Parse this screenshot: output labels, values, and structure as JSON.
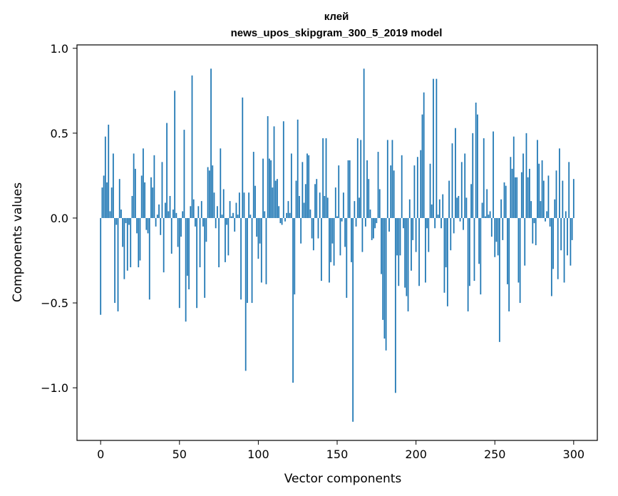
{
  "chart_data": {
    "type": "bar",
    "title": "клей",
    "subtitle": "news_upos_skipgram_300_5_2019 model",
    "xlabel": "Vector components",
    "ylabel": "Components values",
    "xlim": [
      -15,
      315
    ],
    "ylim": [
      -1.31,
      1.02
    ],
    "x_ticks": [
      0,
      50,
      100,
      150,
      200,
      250,
      300
    ],
    "x_tick_labels": [
      "0",
      "50",
      "100",
      "150",
      "200",
      "250",
      "300"
    ],
    "y_ticks": [
      1.0,
      0.5,
      0.0,
      -0.5,
      -1.0
    ],
    "y_tick_labels": [
      "1.0",
      "0.5",
      "0.0",
      "−0.5",
      "−1.0"
    ],
    "grid": false,
    "bar_color": "#1f77b4",
    "values": [
      -0.57,
      0.18,
      0.25,
      0.48,
      0.21,
      0.55,
      0.04,
      0.18,
      0.38,
      -0.5,
      -0.04,
      -0.55,
      0.23,
      0.05,
      -0.17,
      -0.36,
      -0.03,
      -0.31,
      -0.04,
      -0.29,
      0.13,
      0.38,
      0.29,
      -0.09,
      -0.29,
      -0.25,
      0.25,
      0.41,
      0.21,
      -0.07,
      -0.09,
      -0.48,
      0.24,
      0.18,
      0.37,
      -0.05,
      0.02,
      0.08,
      -0.1,
      0.33,
      -0.32,
      0.09,
      0.56,
      0.04,
      0.13,
      -0.21,
      0.05,
      0.75,
      0.03,
      -0.17,
      -0.53,
      -0.11,
      0.04,
      0.52,
      -0.61,
      -0.34,
      -0.42,
      0.07,
      0.84,
      0.11,
      -0.05,
      -0.53,
      0.07,
      -0.29,
      0.1,
      -0.05,
      -0.47,
      -0.14,
      0.3,
      0.28,
      0.88,
      0.31,
      0.15,
      -0.06,
      0.07,
      -0.29,
      0.41,
      0.02,
      0.17,
      -0.26,
      -0.04,
      -0.22,
      0.1,
      0.01,
      0.03,
      -0.08,
      0.09,
      0.02,
      0.15,
      -0.48,
      0.71,
      0.15,
      -0.9,
      -0.5,
      0.15,
      0.02,
      -0.5,
      0.39,
      0.19,
      -0.11,
      -0.24,
      -0.15,
      -0.38,
      0.35,
      0.04,
      -0.39,
      0.6,
      0.35,
      0.34,
      0.18,
      0.54,
      0.22,
      0.23,
      0.07,
      -0.03,
      -0.04,
      0.57,
      -0.02,
      0.03,
      0.1,
      0.03,
      0.38,
      -0.97,
      -0.45,
      0.22,
      0.58,
      0.13,
      -0.15,
      0.33,
      0.09,
      0.2,
      0.38,
      0.37,
      0.05,
      -0.12,
      -0.19,
      0.2,
      0.23,
      -0.12,
      0.15,
      -0.37,
      0.47,
      0.13,
      0.47,
      0.12,
      -0.38,
      -0.26,
      -0.15,
      -0.28,
      0.18,
      0.01,
      0.31,
      -0.22,
      -0.02,
      0.15,
      -0.17,
      -0.47,
      0.34,
      0.34,
      -0.26,
      -1.2,
      0.1,
      -0.05,
      0.47,
      0.12,
      0.46,
      -0.2,
      0.88,
      -0.05,
      0.34,
      0.23,
      0.05,
      -0.13,
      -0.12,
      -0.06,
      -0.03,
      0.39,
      0.17,
      -0.33,
      -0.6,
      -0.71,
      -0.78,
      0.46,
      -0.08,
      0.31,
      0.46,
      0.28,
      -1.03,
      -0.22,
      -0.4,
      -0.22,
      0.37,
      -0.06,
      -0.41,
      -0.46,
      -0.55,
      0.11,
      -0.31,
      -0.13,
      0.31,
      -0.2,
      0.36,
      -0.4,
      0.4,
      0.61,
      0.74,
      -0.38,
      -0.06,
      -0.2,
      0.32,
      0.08,
      0.82,
      -0.06,
      0.82,
      0.02,
      0.11,
      -0.06,
      0.14,
      -0.44,
      -0.29,
      -0.52,
      0.22,
      -0.19,
      0.44,
      -0.09,
      0.53,
      0.12,
      0.13,
      -0.02,
      0.33,
      -0.07,
      0.38,
      0.12,
      -0.55,
      -0.4,
      0.2,
      0.5,
      -0.37,
      0.68,
      0.61,
      -0.27,
      -0.45,
      0.09,
      0.47,
      0.01,
      0.17,
      0.02,
      0.04,
      -0.11,
      0.51,
      -0.23,
      -0.14,
      -0.22,
      -0.73,
      0.11,
      -0.13,
      0.21,
      0.19,
      -0.39,
      -0.55,
      0.36,
      0.29,
      0.48,
      0.24,
      0.24,
      -0.38,
      -0.5,
      0.27,
      0.38,
      -0.28,
      0.5,
      0.24,
      0.29,
      0.1,
      -0.15,
      -0.03,
      -0.16,
      0.46,
      0.32,
      0.1,
      0.34,
      0.22,
      -0.02,
      0.04,
      0.25,
      -0.05,
      -0.46,
      -0.3,
      0.11,
      0.28,
      -0.36,
      0.41,
      -0.19,
      0.22,
      -0.38,
      0.04,
      -0.22,
      0.33,
      -0.28,
      -0.13,
      0.23
    ]
  }
}
